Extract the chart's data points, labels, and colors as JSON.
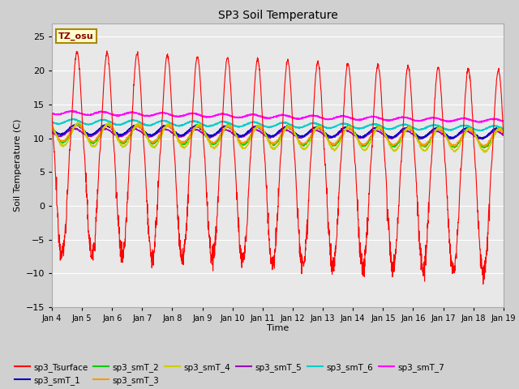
{
  "title": "SP3 Soil Temperature",
  "ylabel": "Soil Temperature (C)",
  "xlabel": "Time",
  "timezone_label": "TZ_osu",
  "ylim": [
    -15,
    27
  ],
  "yticks": [
    -15,
    -10,
    -5,
    0,
    5,
    10,
    15,
    20,
    25
  ],
  "xtick_labels": [
    "Jan 4",
    "Jan 5",
    "Jan 6",
    "Jan 7",
    "Jan 8",
    "Jan 9",
    "Jan 10",
    "Jan 11",
    "Jan 12",
    "Jan 13",
    "Jan 14",
    "Jan 15",
    "Jan 16",
    "Jan 17",
    "Jan 18",
    "Jan 19"
  ],
  "series_colors": {
    "sp3_Tsurface": "#ff0000",
    "sp3_smT_1": "#0000cc",
    "sp3_smT_2": "#00cc00",
    "sp3_smT_3": "#ff9900",
    "sp3_smT_4": "#cccc00",
    "sp3_smT_5": "#9900bb",
    "sp3_smT_6": "#00cccc",
    "sp3_smT_7": "#ff00ff"
  },
  "plot_bg_color": "#e8e8e8",
  "fig_bg_color": "#d0d0d0",
  "n_days": 15,
  "pts_per_day": 144
}
